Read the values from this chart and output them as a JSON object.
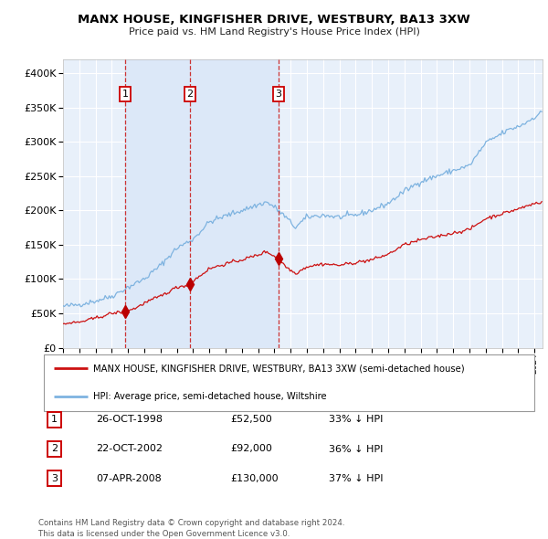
{
  "title": "MANX HOUSE, KINGFISHER DRIVE, WESTBURY, BA13 3XW",
  "subtitle": "Price paid vs. HM Land Registry's House Price Index (HPI)",
  "xlim": [
    1995.0,
    2024.5
  ],
  "ylim": [
    0,
    420000
  ],
  "yticks": [
    0,
    50000,
    100000,
    150000,
    200000,
    250000,
    300000,
    350000,
    400000
  ],
  "ytick_labels": [
    "£0",
    "£50K",
    "£100K",
    "£150K",
    "£200K",
    "£250K",
    "£300K",
    "£350K",
    "£400K"
  ],
  "sale_dates": [
    1998.82,
    2002.81,
    2008.27
  ],
  "sale_prices": [
    52500,
    92000,
    130000
  ],
  "sale_labels": [
    "1",
    "2",
    "3"
  ],
  "background_color": "#ffffff",
  "plot_bg_color": "#e8f0fa",
  "grid_color": "#ffffff",
  "hpi_line_color": "#7eb3e0",
  "price_line_color": "#cc1111",
  "sale_marker_color": "#bb0000",
  "sale_vline_color": "#cc3333",
  "legend_house_label": "MANX HOUSE, KINGFISHER DRIVE, WESTBURY, BA13 3XW (semi-detached house)",
  "legend_hpi_label": "HPI: Average price, semi-detached house, Wiltshire",
  "table_rows": [
    [
      "1",
      "26-OCT-1998",
      "£52,500",
      "33% ↓ HPI"
    ],
    [
      "2",
      "22-OCT-2002",
      "£92,000",
      "36% ↓ HPI"
    ],
    [
      "3",
      "07-APR-2008",
      "£130,000",
      "37% ↓ HPI"
    ]
  ],
  "footer": "Contains HM Land Registry data © Crown copyright and database right 2024.\nThis data is licensed under the Open Government Licence v3.0.",
  "hpi_keypoints_t": [
    1995.0,
    1996.0,
    1997.0,
    1998.0,
    1999.0,
    2000.0,
    2001.0,
    2002.0,
    2003.0,
    2004.0,
    2005.0,
    2006.0,
    2007.0,
    2007.5,
    2008.0,
    2008.7,
    2009.3,
    2010.0,
    2011.0,
    2012.0,
    2013.0,
    2014.0,
    2015.0,
    2016.0,
    2017.0,
    2018.0,
    2019.0,
    2020.0,
    2021.0,
    2022.0,
    2022.5,
    2023.0,
    2023.5,
    2024.0,
    2024.4
  ],
  "hpi_keypoints_v": [
    60000,
    63000,
    68000,
    75000,
    88000,
    100000,
    120000,
    145000,
    158000,
    183000,
    192000,
    200000,
    208000,
    212000,
    205000,
    190000,
    175000,
    190000,
    193000,
    190000,
    193000,
    200000,
    210000,
    228000,
    242000,
    250000,
    258000,
    265000,
    298000,
    312000,
    318000,
    322000,
    328000,
    336000,
    342000
  ],
  "price_keypoints_t": [
    1995.0,
    1996.0,
    1997.0,
    1998.0,
    1998.82,
    1999.5,
    2000.0,
    2001.0,
    2002.0,
    2002.81,
    2003.0,
    2004.0,
    2005.0,
    2006.0,
    2007.0,
    2007.5,
    2008.27,
    2008.7,
    2009.3,
    2010.0,
    2011.0,
    2012.0,
    2013.0,
    2014.0,
    2015.0,
    2016.0,
    2017.0,
    2018.0,
    2019.0,
    2020.0,
    2021.0,
    2022.0,
    2023.0,
    2024.0,
    2024.4
  ],
  "price_keypoints_v": [
    35000,
    37000,
    43000,
    50000,
    52500,
    58000,
    65000,
    75000,
    88000,
    92000,
    97000,
    115000,
    122000,
    128000,
    135000,
    140000,
    130000,
    118000,
    108000,
    118000,
    122000,
    120000,
    124000,
    128000,
    136000,
    150000,
    157000,
    162000,
    167000,
    172000,
    188000,
    195000,
    202000,
    210000,
    212000
  ]
}
